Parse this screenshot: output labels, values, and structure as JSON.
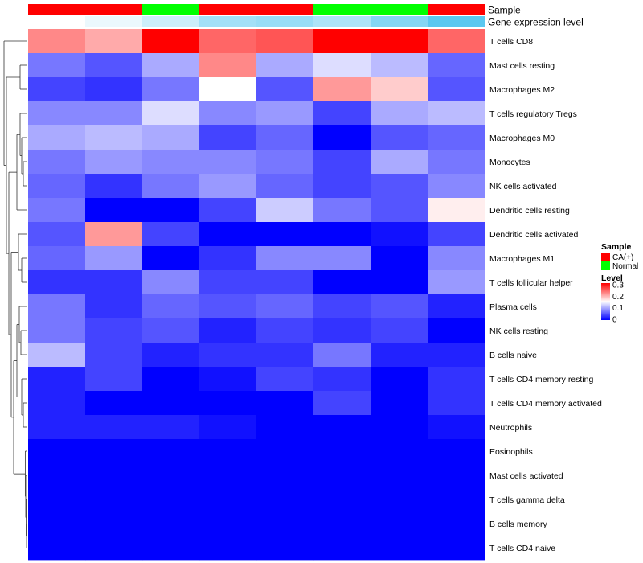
{
  "chart_data": {
    "type": "heatmap",
    "rows": [
      "T cells CD8",
      "Mast cells resting",
      "Macrophages M2",
      "T cells regulatory  Tregs",
      "Macrophages M0",
      "Monocytes",
      "NK cells activated",
      "Dendritic cells resting",
      "Dendritic cells activated",
      "Macrophages M1",
      "T cells follicular helper",
      "Plasma cells",
      "NK cells resting",
      "B cells naive",
      "T cells CD4 memory resting",
      "T cells CD4 memory activated",
      "Neutrophils",
      "Eosinophils",
      "Mast cells activated",
      "T cells gamma delta",
      "B cells memory",
      "T cells CD4 naive"
    ],
    "sample_groups": [
      "CA(+)",
      "CA(+)",
      "Normal",
      "CA(+)",
      "CA(+)",
      "Normal",
      "Normal",
      "CA(+)"
    ],
    "gene_expression_level": [
      0.0,
      0.02,
      0.05,
      0.09,
      0.1,
      0.08,
      0.12,
      0.16
    ],
    "values": [
      [
        0.22,
        0.2,
        0.3,
        0.24,
        0.25,
        0.3,
        0.3,
        0.24
      ],
      [
        0.07,
        0.05,
        0.1,
        0.22,
        0.1,
        0.13,
        0.11,
        0.06
      ],
      [
        0.04,
        0.03,
        0.07,
        0.15,
        0.05,
        0.21,
        0.18,
        0.05
      ],
      [
        0.08,
        0.08,
        0.13,
        0.08,
        0.09,
        0.04,
        0.1,
        0.11
      ],
      [
        0.1,
        0.11,
        0.1,
        0.04,
        0.06,
        0.0,
        0.05,
        0.06
      ],
      [
        0.07,
        0.09,
        0.08,
        0.08,
        0.07,
        0.04,
        0.1,
        0.07
      ],
      [
        0.06,
        0.03,
        0.07,
        0.09,
        0.06,
        0.04,
        0.05,
        0.08
      ],
      [
        0.07,
        0.0,
        0.0,
        0.04,
        0.12,
        0.07,
        0.05,
        0.16
      ],
      [
        0.05,
        0.21,
        0.04,
        0.0,
        0.0,
        0.0,
        0.01,
        0.04
      ],
      [
        0.06,
        0.09,
        0.0,
        0.03,
        0.08,
        0.08,
        0.0,
        0.08
      ],
      [
        0.03,
        0.03,
        0.08,
        0.04,
        0.04,
        0.0,
        0.0,
        0.09
      ],
      [
        0.07,
        0.03,
        0.06,
        0.05,
        0.06,
        0.04,
        0.05,
        0.02
      ],
      [
        0.07,
        0.04,
        0.05,
        0.02,
        0.04,
        0.03,
        0.04,
        0.0
      ],
      [
        0.11,
        0.04,
        0.02,
        0.03,
        0.03,
        0.07,
        0.02,
        0.02
      ],
      [
        0.02,
        0.04,
        0.0,
        0.01,
        0.04,
        0.03,
        0.0,
        0.03
      ],
      [
        0.02,
        0.0,
        0.0,
        0.0,
        0.0,
        0.04,
        0.0,
        0.03
      ],
      [
        0.02,
        0.02,
        0.02,
        0.01,
        0.0,
        0.0,
        0.0,
        0.01
      ],
      [
        0.0,
        0.0,
        0.0,
        0.0,
        0.0,
        0.0,
        0.0,
        0.0
      ],
      [
        0.0,
        0.0,
        0.0,
        0.0,
        0.0,
        0.0,
        0.0,
        0.0
      ],
      [
        0.0,
        0.0,
        0.0,
        0.0,
        0.0,
        0.0,
        0.0,
        0.0
      ],
      [
        0.0,
        0.0,
        0.0,
        0.0,
        0.0,
        0.0,
        0.0,
        0.0
      ],
      [
        0.0,
        0.0,
        0.0,
        0.0,
        0.0,
        0.0,
        0.0,
        0.0
      ]
    ],
    "color_range": [
      0,
      0.3
    ],
    "color_scale": [
      "#0000ff",
      "#ffffff",
      "#ff0000"
    ],
    "annotation_tracks": [
      "Sample",
      "Gene expression level"
    ],
    "legend": {
      "placement": "right",
      "sample_title": "Sample",
      "sample_items": [
        {
          "label": "CA(+)",
          "color": "#ff0000"
        },
        {
          "label": "Normal",
          "color": "#00ff00"
        }
      ],
      "level_title": "Level",
      "level_ticks": [
        "0.3",
        "0.2",
        "0.1",
        "0"
      ]
    },
    "gene_level_colors": [
      "#ffffff",
      "#5bc8f0"
    ],
    "row_dendrogram": true
  }
}
